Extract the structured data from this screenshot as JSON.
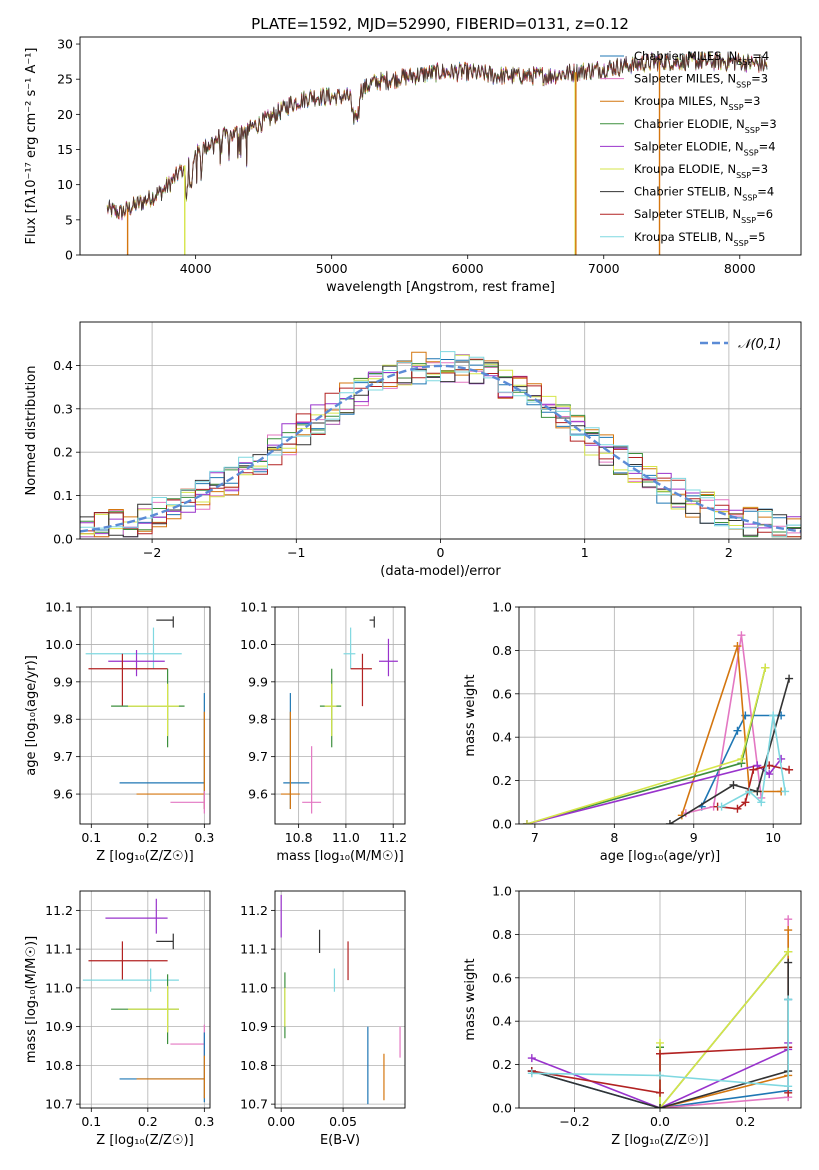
{
  "figure": {
    "title": "PLATE=1592, MJD=52990, FIBERID=0131, z=0.12"
  },
  "chart_data": [
    {
      "id": "spectrum",
      "type": "line",
      "xlabel": "wavelength [Angstrom, rest frame]",
      "ylabel": "Flux [fλ10⁻¹⁷ erg cm⁻² s⁻¹ A⁻¹]",
      "xlim": [
        3150,
        8450
      ],
      "ylim": [
        0,
        31
      ],
      "xticks": [
        4000,
        5000,
        6000,
        7000,
        8000
      ],
      "yticks": [
        0,
        5,
        10,
        15,
        20,
        25,
        30
      ],
      "grid": false,
      "legend_position": "upper-right",
      "series": [
        {
          "name": "Chabrier MILES, N_SSP=4",
          "color": "#1f77b4"
        },
        {
          "name": "Salpeter MILES, N_SSP=3",
          "color": "#e377c2"
        },
        {
          "name": "Kroupa MILES, N_SSP=3",
          "color": "#d4760f"
        },
        {
          "name": "Chabrier ELODIE, N_SSP=3",
          "color": "#3d8f3d"
        },
        {
          "name": "Salpeter ELODIE, N_SSP=4",
          "color": "#9933cc"
        },
        {
          "name": "Kroupa ELODIE, N_SSP=3",
          "color": "#d6e54a"
        },
        {
          "name": "Chabrier STELIB, N_SSP=4",
          "color": "#333333"
        },
        {
          "name": "Salpeter STELIB, N_SSP=6",
          "color": "#b22222"
        },
        {
          "name": "Kroupa STELIB, N_SSP=5",
          "color": "#7fd8e0"
        }
      ],
      "continuum": {
        "x": [
          3350,
          3450,
          3600,
          3750,
          3850,
          3950,
          4050,
          4150,
          4250,
          4400,
          4550,
          4700,
          4850,
          5000,
          5150,
          5300,
          5450,
          5600,
          5800,
          6000,
          6200,
          6400,
          6600,
          6800,
          7000,
          7200,
          7400,
          7600,
          7800,
          8000,
          8200
        ],
        "y": [
          6.5,
          6.0,
          7.5,
          9.0,
          11.0,
          13.5,
          15.0,
          16.5,
          17.0,
          18.0,
          19.5,
          21.5,
          22.5,
          22.5,
          22.5,
          24.5,
          25.0,
          25.5,
          26.0,
          26.0,
          25.5,
          25.5,
          25.5,
          26.0,
          26.5,
          27.0,
          27.5,
          27.5,
          27.5,
          27.5,
          27.0
        ]
      },
      "drops": [
        {
          "x": 3500,
          "color": "#d4760f"
        },
        {
          "x": 3920,
          "color": "#d6e54a"
        },
        {
          "x": 6790,
          "color": "#d6e54a"
        },
        {
          "x": 6795,
          "color": "#d4760f"
        },
        {
          "x": 7410,
          "color": "#d4760f"
        }
      ]
    },
    {
      "id": "residuals",
      "type": "area",
      "xlabel": "(data-model)/error",
      "ylabel": "Normed distribution",
      "xlim": [
        -2.5,
        2.5
      ],
      "ylim": [
        0,
        0.5
      ],
      "xticks": [
        -2,
        -1,
        0,
        1,
        2
      ],
      "yticks": [
        0.0,
        0.1,
        0.2,
        0.3,
        0.4
      ],
      "grid": true,
      "legend_position": "upper-right",
      "legend": "𝒩(0,1)",
      "bin_width": 0.1,
      "series_colors": [
        "#1f77b4",
        "#e377c2",
        "#d4760f",
        "#3d8f3d",
        "#9933cc",
        "#d6e54a",
        "#333333",
        "#b22222",
        "#7fd8e0"
      ]
    },
    {
      "id": "age-vs-metallicity",
      "type": "scatter",
      "xlabel": "Z [log₁₀(Z/Z☉)]",
      "ylabel": "age  [log₁₀(age/yr)]",
      "xlim": [
        0.08,
        0.31
      ],
      "ylim": [
        9.52,
        10.1
      ],
      "xticks": [
        0.1,
        0.2,
        0.3
      ],
      "yticks": [
        9.6,
        9.7,
        9.8,
        9.9,
        10.0,
        10.1
      ],
      "grid": true,
      "points": [
        {
          "x": 0.245,
          "y": 10.065,
          "xerr": [
            0.03,
            0.0
          ],
          "yerr": [
            0.02,
            0.01
          ],
          "color": "#333333"
        },
        {
          "x": 0.21,
          "y": 9.975,
          "xerr": [
            0.12,
            0.05
          ],
          "yerr": [
            0.04,
            0.07
          ],
          "color": "#7fd8e0"
        },
        {
          "x": 0.18,
          "y": 9.955,
          "xerr": [
            0.05,
            0.05
          ],
          "yerr": [
            0.04,
            0.03
          ],
          "color": "#9933cc"
        },
        {
          "x": 0.155,
          "y": 9.935,
          "xerr": [
            0.06,
            0.08
          ],
          "yerr": [
            0.1,
            0.04
          ],
          "color": "#b22222"
        },
        {
          "x": 0.235,
          "y": 9.835,
          "xerr": [
            0.1,
            0.03
          ],
          "yerr": [
            0.11,
            0.1
          ],
          "color": "#3d8f3d"
        },
        {
          "x": 0.235,
          "y": 9.835,
          "xerr": [
            0.07,
            0.02
          ],
          "yerr": [
            0.08,
            0.06
          ],
          "color": "#d6e54a"
        },
        {
          "x": 0.3,
          "y": 9.63,
          "xerr": [
            0.15,
            0.0
          ],
          "yerr": [
            0.07,
            0.24
          ],
          "color": "#1f77b4"
        },
        {
          "x": 0.3,
          "y": 9.6,
          "xerr": [
            0.12,
            0.0
          ],
          "yerr": [
            0.04,
            0.22
          ],
          "color": "#d4760f"
        },
        {
          "x": 0.3,
          "y": 9.578,
          "xerr": [
            0.06,
            0.0
          ],
          "yerr": [
            0.03,
            0.03
          ],
          "color": "#e377c2"
        }
      ]
    },
    {
      "id": "age-vs-mass",
      "type": "scatter",
      "xlabel": "mass [log₁₀(M/M☉)]",
      "ylabel": "",
      "xlim": [
        10.7,
        11.25
      ],
      "ylim": [
        9.52,
        10.1
      ],
      "xticks": [
        10.8,
        11.0,
        11.2
      ],
      "yticks": [
        9.6,
        9.7,
        9.8,
        9.9,
        10.0,
        10.1
      ],
      "grid": true,
      "points": [
        {
          "x": 11.12,
          "y": 10.065,
          "xerr": [
            0.02,
            0.0
          ],
          "yerr": [
            0.02,
            0.01
          ],
          "color": "#333333"
        },
        {
          "x": 11.02,
          "y": 9.975,
          "xerr": [
            0.03,
            0.02
          ],
          "yerr": [
            0.04,
            0.07
          ],
          "color": "#7fd8e0"
        },
        {
          "x": 11.18,
          "y": 9.955,
          "xerr": [
            0.04,
            0.04
          ],
          "yerr": [
            0.04,
            0.06
          ],
          "color": "#9933cc"
        },
        {
          "x": 11.07,
          "y": 9.935,
          "xerr": [
            0.05,
            0.04
          ],
          "yerr": [
            0.1,
            0.04
          ],
          "color": "#b22222"
        },
        {
          "x": 10.94,
          "y": 9.835,
          "xerr": [
            0.05,
            0.04
          ],
          "yerr": [
            0.11,
            0.1
          ],
          "color": "#3d8f3d"
        },
        {
          "x": 10.94,
          "y": 9.835,
          "xerr": [
            0.03,
            0.02
          ],
          "yerr": [
            0.08,
            0.06
          ],
          "color": "#d6e54a"
        },
        {
          "x": 10.765,
          "y": 9.63,
          "xerr": [
            0.03,
            0.08
          ],
          "yerr": [
            0.07,
            0.24
          ],
          "color": "#1f77b4"
        },
        {
          "x": 10.765,
          "y": 9.6,
          "xerr": [
            0.04,
            0.04
          ],
          "yerr": [
            0.04,
            0.22
          ],
          "color": "#d4760f"
        },
        {
          "x": 10.855,
          "y": 9.578,
          "xerr": [
            0.04,
            0.04
          ],
          "yerr": [
            0.03,
            0.15
          ],
          "color": "#e377c2"
        }
      ]
    },
    {
      "id": "mass-weight-vs-age",
      "type": "line",
      "xlabel": "age  [log₁₀(age/yr)]",
      "ylabel": "mass weight",
      "xlim": [
        6.8,
        10.35
      ],
      "ylim": [
        0,
        1
      ],
      "xticks": [
        7,
        8,
        9,
        10
      ],
      "yticks": [
        0.0,
        0.2,
        0.4,
        0.6,
        0.8,
        1.0
      ],
      "grid": true,
      "series": [
        {
          "color": "#1f77b4",
          "x": [
            9.1,
            9.55,
            9.65,
            10.1
          ],
          "y": [
            0.08,
            0.43,
            0.5,
            0.5
          ]
        },
        {
          "color": "#e377c2",
          "x": [
            8.9,
            9.25,
            9.6,
            9.85
          ],
          "y": [
            0.05,
            0.08,
            0.87,
            0.12
          ]
        },
        {
          "color": "#d4760f",
          "x": [
            8.85,
            9.55,
            9.7,
            10.1
          ],
          "y": [
            0.04,
            0.82,
            0.15,
            0.15
          ]
        },
        {
          "color": "#3d8f3d",
          "x": [
            6.9,
            9.6,
            9.9
          ],
          "y": [
            0.0,
            0.28,
            0.72
          ]
        },
        {
          "color": "#9933cc",
          "x": [
            6.9,
            9.8,
            9.95,
            10.1
          ],
          "y": [
            0.0,
            0.27,
            0.23,
            0.3
          ]
        },
        {
          "color": "#d6e54a",
          "x": [
            6.9,
            9.6,
            9.9
          ],
          "y": [
            0.0,
            0.3,
            0.72
          ]
        },
        {
          "color": "#333333",
          "x": [
            8.7,
            9.5,
            9.8,
            10.2
          ],
          "y": [
            0.0,
            0.18,
            0.15,
            0.67
          ]
        },
        {
          "color": "#b22222",
          "x": [
            9.3,
            9.55,
            9.65,
            9.75,
            9.95,
            10.2
          ],
          "y": [
            0.08,
            0.07,
            0.1,
            0.25,
            0.27,
            0.25
          ]
        },
        {
          "color": "#7fd8e0",
          "x": [
            9.35,
            9.7,
            9.85,
            10.0,
            10.15
          ],
          "y": [
            0.08,
            0.15,
            0.1,
            0.5,
            0.15
          ]
        }
      ]
    },
    {
      "id": "mass-vs-metallicity",
      "type": "scatter",
      "xlabel": "Z [log₁₀(Z/Z☉)]",
      "ylabel": "mass [log₁₀(M/M☉)]",
      "xlim": [
        0.08,
        0.31
      ],
      "ylim": [
        10.69,
        11.25
      ],
      "xticks": [
        0.1,
        0.2,
        0.3
      ],
      "yticks": [
        10.7,
        10.8,
        10.9,
        11.0,
        11.1,
        11.2
      ],
      "grid": true,
      "points": [
        {
          "x": 0.245,
          "y": 11.12,
          "xerr": [
            0.03,
            0.0
          ],
          "yerr": [
            0.02,
            0.02
          ],
          "color": "#333333"
        },
        {
          "x": 0.215,
          "y": 11.18,
          "xerr": [
            0.09,
            0.02
          ],
          "yerr": [
            0.04,
            0.05
          ],
          "color": "#9933cc"
        },
        {
          "x": 0.155,
          "y": 11.07,
          "xerr": [
            0.06,
            0.08
          ],
          "yerr": [
            0.05,
            0.05
          ],
          "color": "#b22222"
        },
        {
          "x": 0.205,
          "y": 11.02,
          "xerr": [
            0.12,
            0.05
          ],
          "yerr": [
            0.03,
            0.03
          ],
          "color": "#7fd8e0"
        },
        {
          "x": 0.235,
          "y": 10.945,
          "xerr": [
            0.1,
            0.02
          ],
          "yerr": [
            0.09,
            0.09
          ],
          "color": "#3d8f3d"
        },
        {
          "x": 0.235,
          "y": 10.945,
          "xerr": [
            0.07,
            0.02
          ],
          "yerr": [
            0.06,
            0.06
          ],
          "color": "#d6e54a"
        },
        {
          "x": 0.3,
          "y": 10.855,
          "xerr": [
            0.06,
            0.0
          ],
          "yerr": [
            0.03,
            0.05
          ],
          "color": "#e377c2"
        },
        {
          "x": 0.3,
          "y": 10.765,
          "xerr": [
            0.15,
            0.0
          ],
          "yerr": [
            0.06,
            0.12
          ],
          "color": "#1f77b4"
        },
        {
          "x": 0.3,
          "y": 10.765,
          "xerr": [
            0.12,
            0.0
          ],
          "yerr": [
            0.05,
            0.06
          ],
          "color": "#d4760f"
        }
      ]
    },
    {
      "id": "mass-vs-extinction",
      "type": "scatter",
      "xlabel": "E(B-V)",
      "ylabel": "",
      "xlim": [
        -0.005,
        0.1
      ],
      "ylim": [
        10.69,
        11.25
      ],
      "xticks": [
        0.0,
        0.05
      ],
      "xtick_labels": [
        "0.00",
        "0.05"
      ],
      "yticks": [
        10.7,
        10.8,
        10.9,
        11.0,
        11.1,
        11.2
      ],
      "grid": true,
      "points": [
        {
          "x": 0.0,
          "y": 11.18,
          "yerr": [
            0.05,
            0.06
          ],
          "color": "#9933cc"
        },
        {
          "x": 0.003,
          "y": 10.95,
          "yerr": [
            0.08,
            0.09
          ],
          "color": "#3d8f3d"
        },
        {
          "x": 0.003,
          "y": 10.95,
          "yerr": [
            0.05,
            0.05
          ],
          "color": "#d6e54a"
        },
        {
          "x": 0.031,
          "y": 11.12,
          "yerr": [
            0.03,
            0.03
          ],
          "color": "#333333"
        },
        {
          "x": 0.054,
          "y": 11.07,
          "yerr": [
            0.05,
            0.05
          ],
          "color": "#b22222"
        },
        {
          "x": 0.043,
          "y": 11.02,
          "yerr": [
            0.03,
            0.03
          ],
          "color": "#7fd8e0"
        },
        {
          "x": 0.07,
          "y": 10.8,
          "yerr": [
            0.1,
            0.1
          ],
          "color": "#1f77b4"
        },
        {
          "x": 0.083,
          "y": 10.77,
          "yerr": [
            0.06,
            0.06
          ],
          "color": "#d4760f"
        },
        {
          "x": 0.096,
          "y": 10.86,
          "yerr": [
            0.04,
            0.04
          ],
          "color": "#e377c2"
        }
      ]
    },
    {
      "id": "mass-weight-vs-metallicity",
      "type": "line",
      "xlabel": "Z [log₁₀(Z/Z☉)]",
      "ylabel": "mass weight",
      "xlim": [
        -0.33,
        0.33
      ],
      "ylim": [
        0,
        1
      ],
      "xticks": [
        -0.2,
        0.0,
        0.2
      ],
      "xtick_labels": [
        "−0.2",
        "0.0",
        "0.2"
      ],
      "yticks": [
        0.0,
        0.2,
        0.4,
        0.6,
        0.8,
        1.0
      ],
      "grid": true,
      "series": [
        {
          "color": "#1f77b4",
          "x": [
            -0.3,
            0.0,
            0.3,
            0.3
          ],
          "y": [
            0.17,
            0.0,
            0.08,
            0.5
          ]
        },
        {
          "color": "#e377c2",
          "x": [
            0.0,
            0.3,
            0.3
          ],
          "y": [
            0.0,
            0.05,
            0.87
          ]
        },
        {
          "color": "#d4760f",
          "x": [
            0.0,
            0.3,
            0.3
          ],
          "y": [
            0.0,
            0.15,
            0.82
          ]
        },
        {
          "color": "#3d8f3d",
          "x": [
            0.0,
            0.0,
            0.3
          ],
          "y": [
            0.28,
            0.0,
            0.72
          ]
        },
        {
          "color": "#9933cc",
          "x": [
            -0.3,
            0.0,
            0.3,
            0.3
          ],
          "y": [
            0.23,
            0.0,
            0.27,
            0.3
          ]
        },
        {
          "color": "#d6e54a",
          "x": [
            0.0,
            0.0,
            0.3
          ],
          "y": [
            0.3,
            0.0,
            0.72
          ]
        },
        {
          "color": "#333333",
          "x": [
            -0.3,
            0.0,
            0.3,
            0.3
          ],
          "y": [
            0.17,
            0.0,
            0.17,
            0.67
          ]
        },
        {
          "color": "#b22222",
          "x": [
            -0.3,
            0.0,
            0.0,
            0.3,
            0.3
          ],
          "y": [
            0.17,
            0.07,
            0.25,
            0.28,
            0.07
          ]
        },
        {
          "color": "#7fd8e0",
          "x": [
            -0.3,
            0.0,
            0.3,
            0.3
          ],
          "y": [
            0.16,
            0.15,
            0.1,
            0.5
          ]
        }
      ]
    }
  ]
}
